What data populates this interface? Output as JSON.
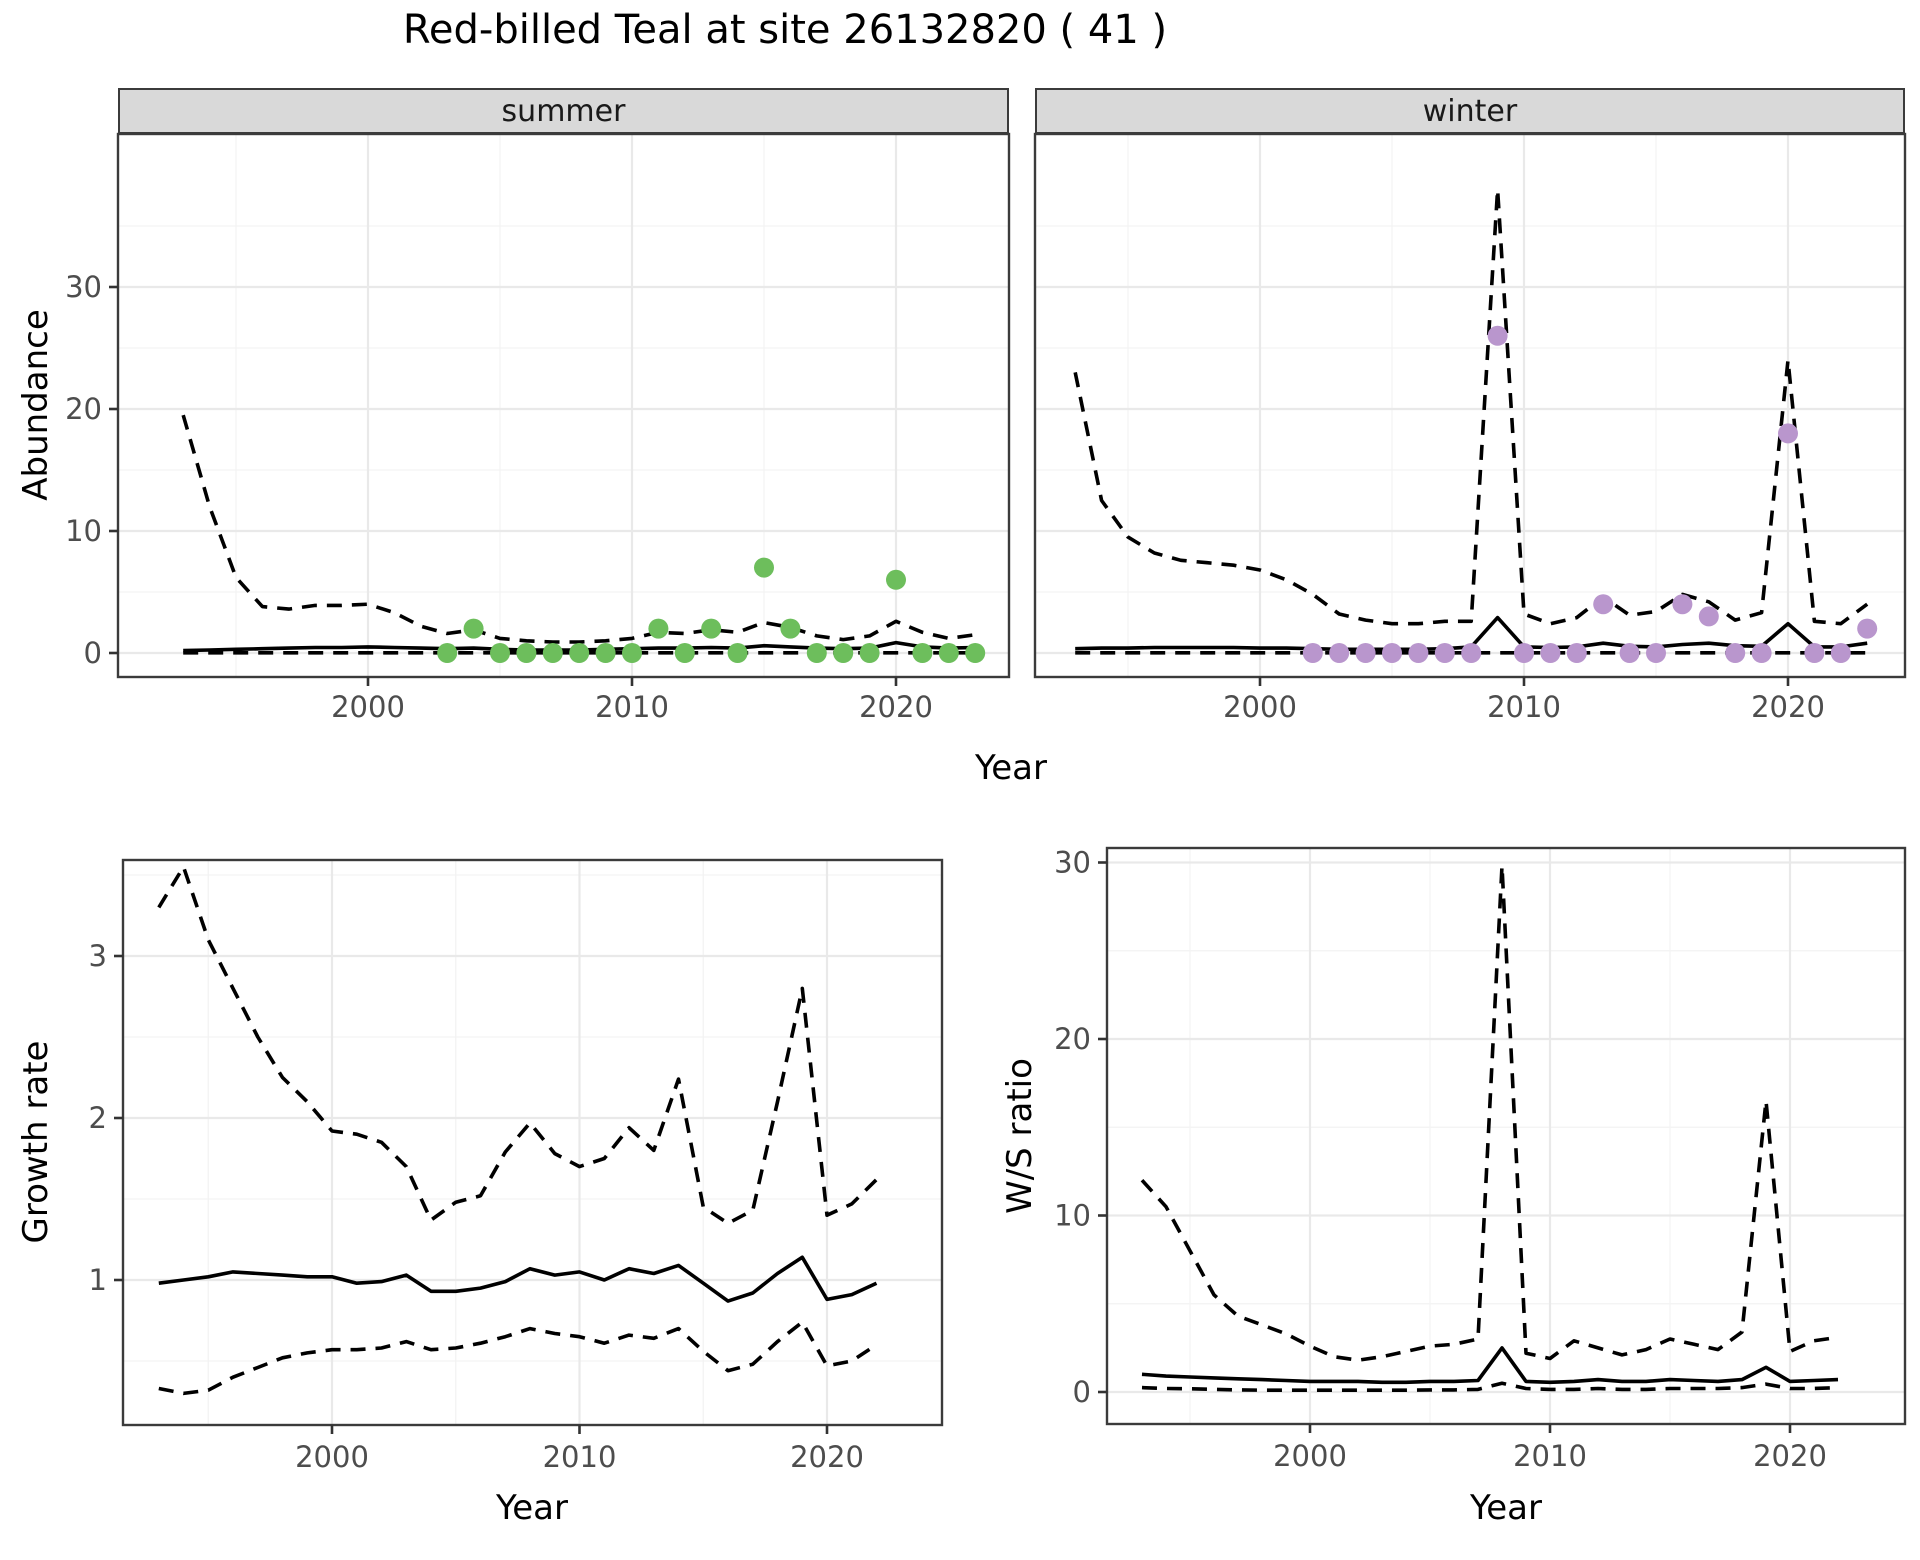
{
  "title": "Red-billed Teal at site 26132820 ( 41 )",
  "labels": {
    "y_abundance": "Abundance",
    "x_year": "Year",
    "y_growth": "Growth rate",
    "y_ws": "W/S ratio"
  },
  "facets": {
    "summer": "summer",
    "winter": "winter"
  },
  "colors": {
    "summer_points": "#6dbe5c",
    "winter_points": "#b996cd",
    "line": "#000000",
    "strip_bg": "#d9d9d9",
    "grid_major": "#e9e9e9",
    "grid_minor": "#f3f3f3",
    "panel_border": "#3b3b3b",
    "tick_text": "#4d4d4d"
  },
  "chart_data": [
    {
      "id": "abundance-summer",
      "type": "line",
      "facet": "summer",
      "xlabel": "Year",
      "ylabel": "Abundance",
      "xlim": [
        1990.6,
        2024.4
      ],
      "ylim": [
        -2.1,
        42.4
      ],
      "xticks": [
        2000,
        2010,
        2020
      ],
      "xticks_minor": [
        1995,
        2005,
        2015
      ],
      "yticks": [
        0,
        10,
        20,
        30
      ],
      "yticks_minor": [
        5,
        15,
        25,
        35
      ],
      "show_y_labels": true,
      "x": [
        1993,
        1994,
        1995,
        1996,
        1997,
        1998,
        1999,
        2000,
        2001,
        2002,
        2003,
        2004,
        2005,
        2006,
        2007,
        2008,
        2009,
        2010,
        2011,
        2012,
        2013,
        2014,
        2015,
        2016,
        2017,
        2018,
        2019,
        2020,
        2021,
        2022,
        2023
      ],
      "series": [
        {
          "name": "median_fit",
          "style": "solid",
          "values": [
            0.2,
            0.25,
            0.3,
            0.35,
            0.4,
            0.45,
            0.45,
            0.5,
            0.45,
            0.4,
            0.35,
            0.4,
            0.3,
            0.25,
            0.25,
            0.25,
            0.3,
            0.35,
            0.4,
            0.4,
            0.45,
            0.4,
            0.6,
            0.5,
            0.4,
            0.35,
            0.4,
            0.85,
            0.5,
            0.4,
            0.45
          ]
        },
        {
          "name": "upper_ci",
          "style": "dashed",
          "values": [
            19.5,
            12,
            6.2,
            3.8,
            3.6,
            3.9,
            3.9,
            4.0,
            3.3,
            2.2,
            1.6,
            1.9,
            1.2,
            1.0,
            0.9,
            0.9,
            1.0,
            1.2,
            1.7,
            1.6,
            1.9,
            1.7,
            2.5,
            2.1,
            1.4,
            1.1,
            1.4,
            2.6,
            1.7,
            1.2,
            1.5
          ]
        },
        {
          "name": "lower_ci",
          "style": "dashed",
          "values": [
            0.02,
            0.02,
            0.02,
            0.02,
            0.02,
            0.02,
            0.02,
            0.02,
            0.02,
            0.02,
            0.02,
            0.02,
            0.02,
            0.02,
            0.02,
            0.02,
            0.02,
            0.02,
            0.02,
            0.02,
            0.02,
            0.02,
            0.02,
            0.02,
            0.02,
            0.02,
            0.02,
            0.02,
            0.02,
            0.02,
            0.02
          ]
        }
      ],
      "points": {
        "name": "observed-counts-summer",
        "color_key": "summer_points",
        "x": [
          2003,
          2004,
          2005,
          2006,
          2007,
          2008,
          2009,
          2010,
          2011,
          2012,
          2013,
          2014,
          2015,
          2016,
          2017,
          2018,
          2019,
          2020,
          2021,
          2022,
          2023
        ],
        "y": [
          0,
          2,
          0,
          0,
          0,
          0,
          0,
          0,
          2,
          0,
          2,
          0,
          7,
          2,
          0,
          0,
          0,
          6,
          0,
          0,
          0
        ]
      }
    },
    {
      "id": "abundance-winter",
      "type": "line",
      "facet": "winter",
      "xlabel": "Year",
      "ylabel": "Abundance",
      "xlim": [
        1991.5,
        2024.4
      ],
      "ylim": [
        -2.1,
        42.4
      ],
      "xticks": [
        2000,
        2010,
        2020
      ],
      "xticks_minor": [
        1995,
        2005,
        2015
      ],
      "yticks": [
        0,
        10,
        20,
        30
      ],
      "yticks_minor": [
        5,
        15,
        25,
        35
      ],
      "show_y_labels": false,
      "x": [
        1993,
        1994,
        1995,
        1996,
        1997,
        1998,
        1999,
        2000,
        2001,
        2002,
        2003,
        2004,
        2005,
        2006,
        2007,
        2008,
        2009,
        2010,
        2011,
        2012,
        2013,
        2014,
        2015,
        2016,
        2017,
        2018,
        2019,
        2020,
        2021,
        2022,
        2023
      ],
      "series": [
        {
          "name": "median_fit",
          "style": "solid",
          "values": [
            0.35,
            0.4,
            0.4,
            0.45,
            0.45,
            0.45,
            0.45,
            0.4,
            0.4,
            0.35,
            0.3,
            0.3,
            0.3,
            0.3,
            0.35,
            0.5,
            2.9,
            0.5,
            0.45,
            0.5,
            0.8,
            0.55,
            0.5,
            0.7,
            0.8,
            0.6,
            0.55,
            2.4,
            0.5,
            0.5,
            0.8
          ]
        },
        {
          "name": "upper_ci",
          "style": "dashed",
          "values": [
            23,
            12.5,
            9.5,
            8.2,
            7.6,
            7.4,
            7.2,
            6.8,
            6.0,
            4.8,
            3.2,
            2.7,
            2.4,
            2.4,
            2.6,
            2.6,
            38,
            3.2,
            2.4,
            2.9,
            4.6,
            3.1,
            3.4,
            4.8,
            4.2,
            2.7,
            3.3,
            24,
            2.6,
            2.4,
            4.0
          ]
        },
        {
          "name": "lower_ci",
          "style": "dashed",
          "values": [
            0.02,
            0.02,
            0.02,
            0.02,
            0.02,
            0.02,
            0.02,
            0.02,
            0.02,
            0.02,
            0.02,
            0.02,
            0.02,
            0.02,
            0.02,
            0.02,
            0.02,
            0.02,
            0.02,
            0.02,
            0.02,
            0.02,
            0.02,
            0.02,
            0.02,
            0.02,
            0.02,
            0.02,
            0.02,
            0.02,
            0.02
          ]
        }
      ],
      "points": {
        "name": "observed-counts-winter",
        "color_key": "winter_points",
        "x": [
          2002,
          2003,
          2004,
          2005,
          2006,
          2007,
          2008,
          2009,
          2010,
          2011,
          2012,
          2013,
          2014,
          2015,
          2016,
          2017,
          2018,
          2019,
          2020,
          2021,
          2022,
          2023
        ],
        "y": [
          0,
          0,
          0,
          0,
          0,
          0,
          0,
          26,
          0,
          0,
          0,
          4,
          0,
          0,
          4,
          3,
          0,
          0,
          18,
          0,
          0,
          2
        ]
      }
    },
    {
      "id": "growth-rate",
      "type": "line",
      "facet": null,
      "xlabel": "Year",
      "ylabel": "Growth rate",
      "xlim": [
        1991.5,
        2024.6
      ],
      "ylim": [
        0.11,
        3.59
      ],
      "xticks": [
        2000,
        2010,
        2020
      ],
      "xticks_minor": [
        1995,
        2005,
        2015
      ],
      "yticks": [
        1,
        2,
        3
      ],
      "yticks_minor": [
        0.5,
        1.5,
        2.5,
        3.5
      ],
      "show_y_labels": true,
      "x": [
        1993,
        1994,
        1995,
        1996,
        1997,
        1998,
        1999,
        2000,
        2001,
        2002,
        2003,
        2004,
        2005,
        2006,
        2007,
        2008,
        2009,
        2010,
        2011,
        2012,
        2013,
        2014,
        2015,
        2016,
        2017,
        2018,
        2019,
        2020,
        2021,
        2022
      ],
      "series": [
        {
          "name": "median_fit",
          "style": "solid",
          "values": [
            0.98,
            1.0,
            1.02,
            1.05,
            1.04,
            1.03,
            1.02,
            1.02,
            0.98,
            0.99,
            1.03,
            0.93,
            0.93,
            0.95,
            0.99,
            1.07,
            1.03,
            1.05,
            1.0,
            1.07,
            1.04,
            1.09,
            0.98,
            0.87,
            0.92,
            1.04,
            1.14,
            0.88,
            0.91,
            0.98
          ]
        },
        {
          "name": "upper_ci",
          "style": "dashed",
          "values": [
            3.3,
            3.55,
            3.1,
            2.8,
            2.5,
            2.25,
            2.1,
            1.92,
            1.9,
            1.85,
            1.7,
            1.37,
            1.48,
            1.52,
            1.79,
            1.97,
            1.78,
            1.7,
            1.75,
            1.94,
            1.8,
            2.24,
            1.45,
            1.35,
            1.43,
            2.1,
            2.8,
            1.4,
            1.47,
            1.62
          ]
        },
        {
          "name": "lower_ci",
          "style": "dashed",
          "values": [
            0.33,
            0.3,
            0.32,
            0.4,
            0.46,
            0.52,
            0.55,
            0.57,
            0.57,
            0.58,
            0.62,
            0.57,
            0.58,
            0.61,
            0.65,
            0.7,
            0.67,
            0.65,
            0.61,
            0.66,
            0.64,
            0.7,
            0.56,
            0.44,
            0.48,
            0.62,
            0.74,
            0.47,
            0.5,
            0.6
          ]
        }
      ],
      "points": null
    },
    {
      "id": "ws-ratio",
      "type": "line",
      "facet": null,
      "xlabel": "Year",
      "ylabel": "W/S ratio",
      "xlim": [
        1991.5,
        2024.6
      ],
      "ylim": [
        -1.9,
        30.9
      ],
      "xticks": [
        2000,
        2010,
        2020
      ],
      "xticks_minor": [
        1995,
        2005,
        2015
      ],
      "yticks": [
        0,
        10,
        20,
        30
      ],
      "yticks_minor": [
        5,
        15,
        25
      ],
      "show_y_labels": true,
      "x": [
        1993,
        1994,
        1995,
        1996,
        1997,
        1998,
        1999,
        2000,
        2001,
        2002,
        2003,
        2004,
        2005,
        2006,
        2007,
        2008,
        2009,
        2010,
        2011,
        2012,
        2013,
        2014,
        2015,
        2016,
        2017,
        2018,
        2019,
        2020,
        2021,
        2022
      ],
      "series": [
        {
          "name": "median_fit",
          "style": "solid",
          "values": [
            1.0,
            0.9,
            0.85,
            0.8,
            0.75,
            0.7,
            0.65,
            0.6,
            0.6,
            0.6,
            0.55,
            0.55,
            0.6,
            0.6,
            0.65,
            2.5,
            0.6,
            0.55,
            0.6,
            0.7,
            0.6,
            0.6,
            0.7,
            0.65,
            0.6,
            0.7,
            1.4,
            0.6,
            0.65,
            0.7
          ]
        },
        {
          "name": "upper_ci",
          "style": "dashed",
          "values": [
            12,
            10.5,
            8,
            5.5,
            4.3,
            3.8,
            3.3,
            2.6,
            2.0,
            1.8,
            2.0,
            2.3,
            2.6,
            2.7,
            3.0,
            29.8,
            2.2,
            1.9,
            2.9,
            2.5,
            2.1,
            2.4,
            3.0,
            2.7,
            2.4,
            3.4,
            16.5,
            2.3,
            2.9,
            3.1
          ]
        },
        {
          "name": "lower_ci",
          "style": "dashed",
          "values": [
            0.25,
            0.2,
            0.18,
            0.15,
            0.12,
            0.1,
            0.1,
            0.1,
            0.1,
            0.1,
            0.1,
            0.1,
            0.12,
            0.12,
            0.15,
            0.5,
            0.2,
            0.15,
            0.15,
            0.2,
            0.15,
            0.15,
            0.2,
            0.2,
            0.2,
            0.25,
            0.45,
            0.2,
            0.2,
            0.25
          ]
        }
      ],
      "points": null
    }
  ]
}
